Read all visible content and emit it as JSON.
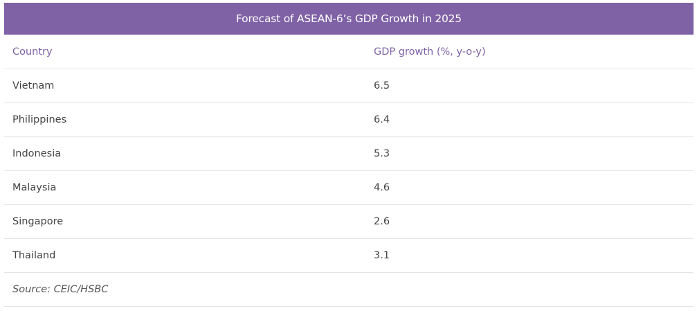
{
  "table": {
    "title": "Forecast of ASEAN-6’s GDP Growth in 2025",
    "headers": {
      "country": "Country",
      "growth": "GDP growth (%, y-o-y)"
    },
    "rows": [
      {
        "country": "Vietnam",
        "growth": "6.5"
      },
      {
        "country": "Philippines",
        "growth": "6.4"
      },
      {
        "country": "Indonesia",
        "growth": "5.3"
      },
      {
        "country": "Malaysia",
        "growth": "4.6"
      },
      {
        "country": "Singapore",
        "growth": "2.6"
      },
      {
        "country": "Thailand",
        "growth": "3.1"
      }
    ],
    "source": "Source: CEIC/HSBC"
  },
  "colors": {
    "accent": "#7f62a5",
    "text": "#444444",
    "divider": "#e4e4e4"
  }
}
